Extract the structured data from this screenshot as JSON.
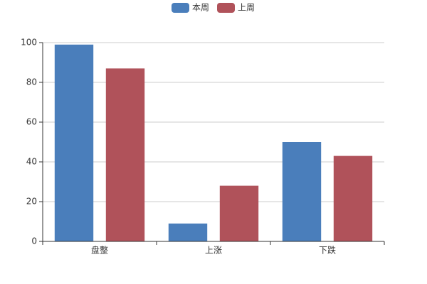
{
  "chart_data": {
    "type": "bar",
    "categories": [
      "盘整",
      "上涨",
      "下跌"
    ],
    "series": [
      {
        "name": "本周",
        "color": "#4a7ebb",
        "values": [
          99,
          9,
          50
        ]
      },
      {
        "name": "上周",
        "color": "#b0525a",
        "values": [
          87,
          28,
          43
        ]
      }
    ],
    "ylim": [
      0,
      100
    ],
    "yticks": [
      0,
      20,
      40,
      60,
      80,
      100
    ],
    "grid": true
  }
}
